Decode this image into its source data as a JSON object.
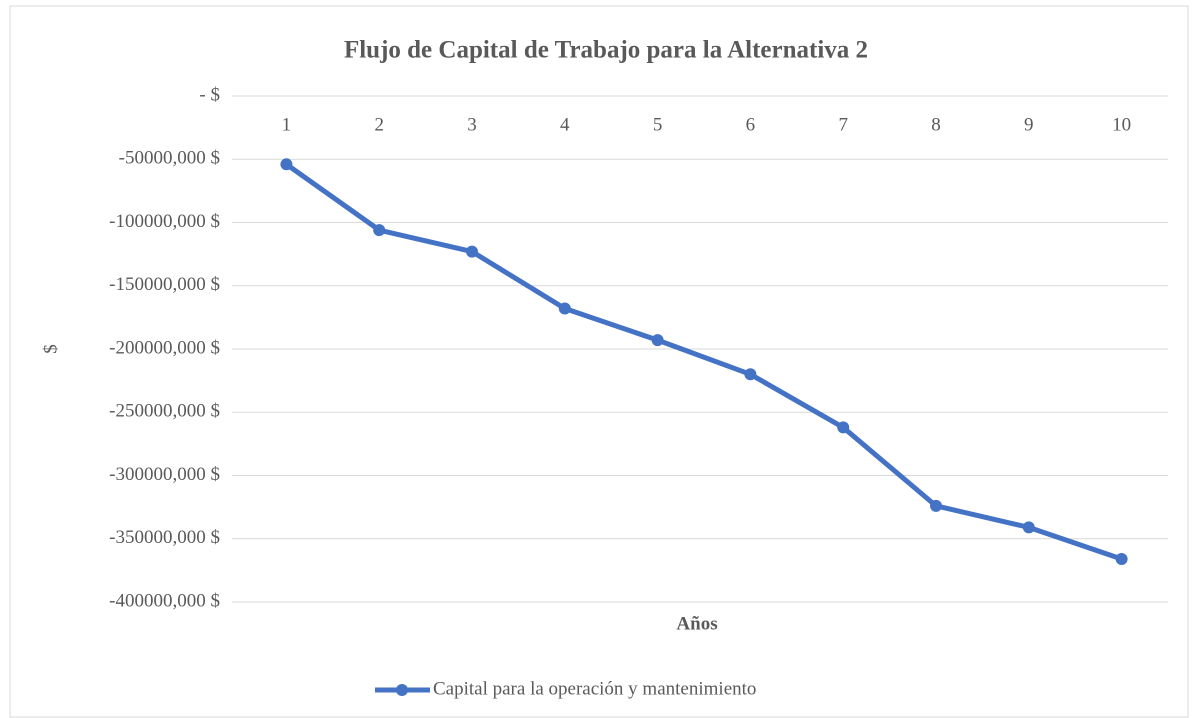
{
  "chart_data": {
    "type": "line",
    "title": "Flujo de Capital de Trabajo para la Alternativa 2",
    "x_label": "Años",
    "y_label": "$",
    "categories": [
      "1",
      "2",
      "3",
      "4",
      "5",
      "6",
      "7",
      "8",
      "9",
      "10"
    ],
    "series": [
      {
        "name": "Capital para la operación y mantenimiento",
        "color": "#4472c4",
        "values": [
          -54000,
          -106000,
          -123000,
          -168000,
          -193000,
          -220000,
          -262000,
          -324000,
          -341000,
          -366000
        ]
      }
    ],
    "ylim": [
      -400000,
      0
    ],
    "yticks": [
      {
        "value": 0,
        "label": "-  $"
      },
      {
        "value": -50000,
        "label": "-50000,000 $"
      },
      {
        "value": -100000,
        "label": "-100000,000 $"
      },
      {
        "value": -150000,
        "label": "-150000,000 $"
      },
      {
        "value": -200000,
        "label": "-200000,000 $"
      },
      {
        "value": -250000,
        "label": "-250000,000 $"
      },
      {
        "value": -300000,
        "label": "-300000,000 $"
      },
      {
        "value": -350000,
        "label": "-350000,000 $"
      },
      {
        "value": -400000,
        "label": "-400000,000 $"
      }
    ],
    "grid": true,
    "legend": "bottom"
  }
}
